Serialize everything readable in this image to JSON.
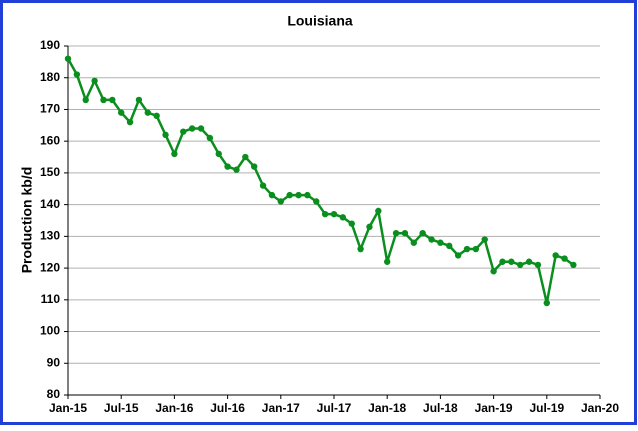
{
  "chart_data": {
    "type": "line",
    "title": "Louisiana",
    "y_label": "Production kb/d",
    "categories": [
      "Jan-15",
      null,
      null,
      null,
      null,
      null,
      "Jul-15",
      null,
      null,
      null,
      null,
      null,
      "Jan-16",
      null,
      null,
      null,
      null,
      null,
      "Jul-16",
      null,
      null,
      null,
      null,
      null,
      "Jan-17",
      null,
      null,
      null,
      null,
      null,
      "Jul-17",
      null,
      null,
      null,
      null,
      null,
      "Jan-18",
      null,
      null,
      null,
      null,
      null,
      "Jul-18",
      null,
      null,
      null,
      null,
      null,
      "Jan-19",
      null,
      null,
      null,
      null,
      null,
      "Jul-19",
      null,
      null,
      null,
      null,
      null,
      "Jan-20"
    ],
    "series": [
      {
        "name": "Louisiana",
        "color": "#0a8f1e",
        "values": [
          186,
          181,
          173,
          179,
          173,
          173,
          169,
          166,
          173,
          169,
          168,
          162,
          156,
          163,
          164,
          164,
          161,
          156,
          152,
          151,
          155,
          152,
          146,
          143,
          141,
          143,
          143,
          143,
          141,
          137,
          137,
          136,
          134,
          126,
          133,
          138,
          122,
          131,
          131,
          128,
          131,
          129,
          128,
          127,
          124,
          126,
          126,
          129,
          119,
          122,
          122,
          121,
          122,
          121,
          109,
          124,
          123,
          121,
          null,
          null,
          null
        ]
      }
    ],
    "ylim": [
      80,
      190
    ],
    "yticks": [
      80,
      90,
      100,
      110,
      120,
      130,
      140,
      150,
      160,
      170,
      180,
      190
    ],
    "grid": true
  }
}
